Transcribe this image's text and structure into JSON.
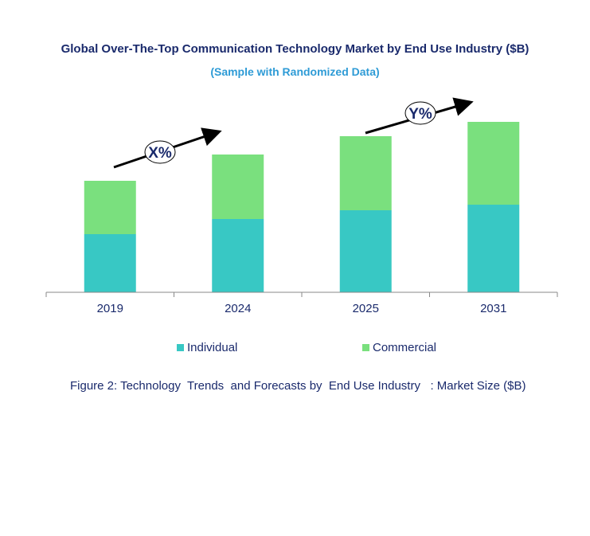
{
  "chart_data": {
    "type": "bar",
    "stacked": true,
    "title": "Global Over-The-Top Communication Technology Market by End Use Industry ($B)",
    "subtitle": "(Sample with Randomized Data)",
    "categories": [
      "2019",
      "2024",
      "2025",
      "2031"
    ],
    "series": [
      {
        "name": "Individual",
        "color": "#38c8c4",
        "values": [
          7.3,
          9.2,
          10.3,
          11.0
        ]
      },
      {
        "name": "Commercial",
        "color": "#7ae07e",
        "values": [
          6.7,
          8.1,
          9.3,
          10.4
        ]
      }
    ],
    "ylim": [
      0,
      22
    ],
    "grid": false,
    "legend": "bottom",
    "annotations": [
      {
        "label": "X%",
        "from": "2019",
        "to": "2024"
      },
      {
        "label": "Y%",
        "from": "2025",
        "to": "2031"
      }
    ],
    "caption": "Figure 2: Technology  Trends  and Forecasts by  End Use Industry   : Market Size ($B)"
  }
}
